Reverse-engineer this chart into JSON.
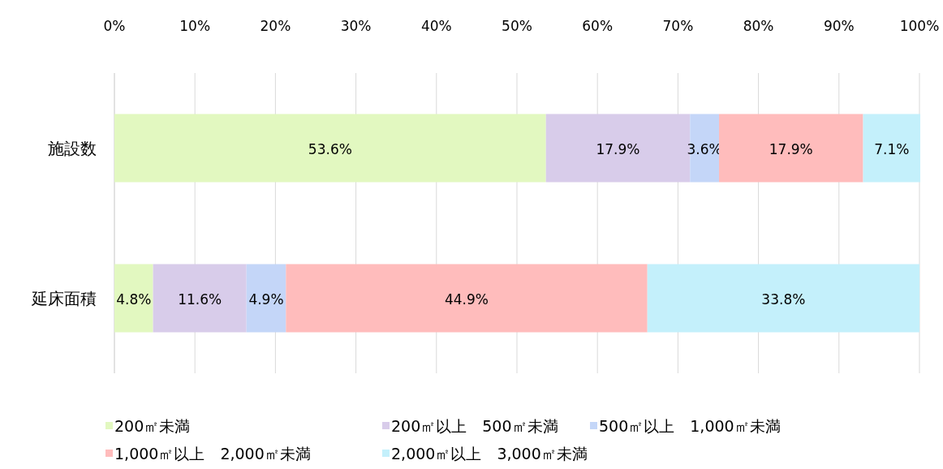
{
  "chart_data": {
    "type": "bar",
    "orientation": "horizontal",
    "stacked": true,
    "grid": "x",
    "legend": "bottom",
    "categories": [
      "施設数",
      "延床面積"
    ],
    "xlim": [
      0,
      100
    ],
    "xticks": [
      {
        "value": 0,
        "label": "0%"
      },
      {
        "value": 10,
        "label": "10%"
      },
      {
        "value": 20,
        "label": "20%"
      },
      {
        "value": 30,
        "label": "30%"
      },
      {
        "value": 40,
        "label": "40%"
      },
      {
        "value": 50,
        "label": "50%"
      },
      {
        "value": 60,
        "label": "60%"
      },
      {
        "value": 70,
        "label": "70%"
      },
      {
        "value": 80,
        "label": "80%"
      },
      {
        "value": 90,
        "label": "90%"
      },
      {
        "value": 100,
        "label": "100%"
      }
    ],
    "series": [
      {
        "name": "200㎡未満",
        "color": "#e2f8c0",
        "values": [
          53.6,
          4.8
        ],
        "value_labels": [
          "53.6%",
          "4.8%"
        ]
      },
      {
        "name": "200㎡以上　500㎡未満",
        "color": "#d8ccea",
        "values": [
          17.9,
          11.6
        ],
        "value_labels": [
          "17.9%",
          "11.6%"
        ]
      },
      {
        "name": "500㎡以上　1,000㎡未満",
        "color": "#c4d6f8",
        "values": [
          3.6,
          4.9
        ],
        "value_labels": [
          "3.6%",
          "4.9%"
        ]
      },
      {
        "name": "1,000㎡以上　2,000㎡未満",
        "color": "#ffbcbc",
        "values": [
          17.9,
          44.9
        ],
        "value_labels": [
          "17.9%",
          "44.9%"
        ]
      },
      {
        "name": "2,000㎡以上　3,000㎡未満",
        "color": "#c4f0fb",
        "values": [
          7.1,
          33.8
        ],
        "value_labels": [
          "7.1%",
          "33.8%"
        ]
      }
    ]
  }
}
